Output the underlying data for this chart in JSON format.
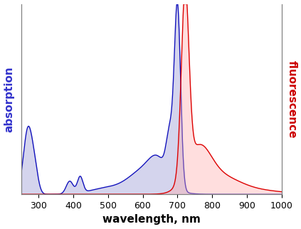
{
  "xlabel": "wavelength, nm",
  "ylabel_left": "absorption",
  "ylabel_right": "fluorescence",
  "ylabel_left_color": "#3333cc",
  "ylabel_right_color": "#cc0000",
  "xmin": 250,
  "xmax": 1000,
  "ymin": 0,
  "ymax": 1.05,
  "background_color": "#ffffff",
  "absorption_fill_color": "#aaaadd",
  "fluorescence_fill_color": "#ffaaaa",
  "absorption_line_color": "#1111bb",
  "fluorescence_line_color": "#dd0000",
  "tick_label_fontsize": 9,
  "axis_label_fontsize": 11,
  "ylabel_fontsize": 11,
  "figsize": [
    4.23,
    3.22
  ],
  "dpi": 100
}
